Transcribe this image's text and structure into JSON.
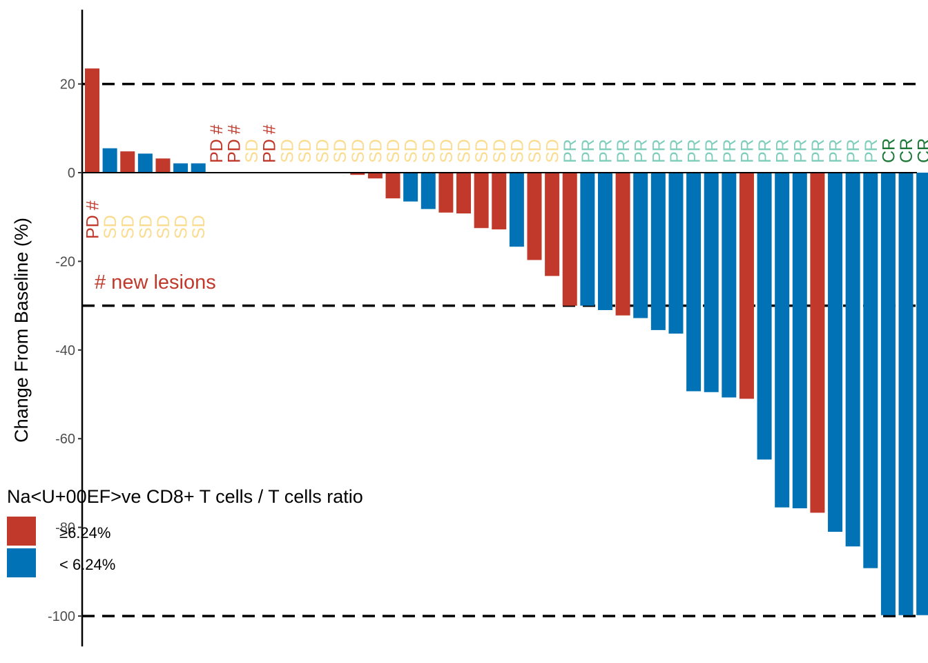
{
  "chart_data": {
    "type": "bar",
    "title": "",
    "xlabel": "",
    "ylabel": "Change From Baseline (%)",
    "ylim": [
      -106.5,
      36
    ],
    "yticks": [
      20,
      0,
      -20,
      -40,
      -60,
      -80,
      -100
    ],
    "reference_lines": [
      20,
      -30,
      -100
    ],
    "grid": false,
    "values": [
      23.5,
      5.5,
      4.8,
      4.3,
      3.2,
      2.1,
      2.1,
      0,
      0,
      0,
      0,
      0,
      0,
      0,
      0,
      -0.5,
      -1.3,
      -5.8,
      -6.5,
      -8.2,
      -9.0,
      -9.2,
      -12.5,
      -12.8,
      -16.7,
      -19.7,
      -23.3,
      -30.0,
      -30.0,
      -31.0,
      -32.2,
      -32.8,
      -35.5,
      -36.3,
      -49.3,
      -49.5,
      -50.7,
      -51.0,
      -64.7,
      -75.5,
      -75.7,
      -76.7,
      -81.0,
      -84.3,
      -89.2,
      -99.8,
      -99.8,
      -99.8
    ],
    "groups": [
      "high",
      "low",
      "high",
      "low",
      "high",
      "low",
      "low",
      "high",
      "high",
      "low",
      "high",
      "low",
      "low",
      "low",
      "low",
      "high",
      "high",
      "high",
      "low",
      "low",
      "high",
      "high",
      "high",
      "high",
      "low",
      "high",
      "high",
      "high",
      "low",
      "low",
      "high",
      "low",
      "low",
      "low",
      "low",
      "low",
      "low",
      "high",
      "low",
      "low",
      "low",
      "high",
      "low",
      "low",
      "low",
      "low",
      "low",
      "low"
    ],
    "responses": [
      "PD #",
      "SD",
      "SD",
      "SD",
      "SD",
      "SD",
      "SD",
      "PD #",
      "PD #",
      "SD",
      "PD #",
      "SD",
      "SD",
      "SD",
      "SD",
      "SD",
      "SD",
      "SD",
      "SD",
      "SD",
      "SD",
      "SD",
      "SD",
      "SD",
      "SD",
      "SD",
      "SD",
      "PR",
      "PR",
      "PR",
      "PR",
      "PR",
      "PR",
      "PR",
      "PR",
      "PR",
      "PR",
      "PR",
      "PR",
      "PR",
      "PR",
      "PR",
      "PR",
      "PR",
      "PR",
      "CR",
      "CR",
      "CR"
    ],
    "legend": {
      "title": "Na<U+00EF>ve CD8+ T cells / T cells ratio",
      "position": "bottom-left",
      "items": [
        {
          "key": "high",
          "label": "≥6.24%",
          "color": "#c0392b"
        },
        {
          "key": "low",
          "label": "< 6.24%",
          "color": "#0072b5"
        }
      ]
    },
    "annotation": "# new lesions",
    "colors": {
      "high": "#c0392b",
      "low": "#0072b5",
      "PD #": "#c0392b",
      "SD": "#fbdc8f",
      "PR": "#7fcdbb",
      "CR": "#1b7837",
      "annotation": "#c0392b"
    }
  }
}
